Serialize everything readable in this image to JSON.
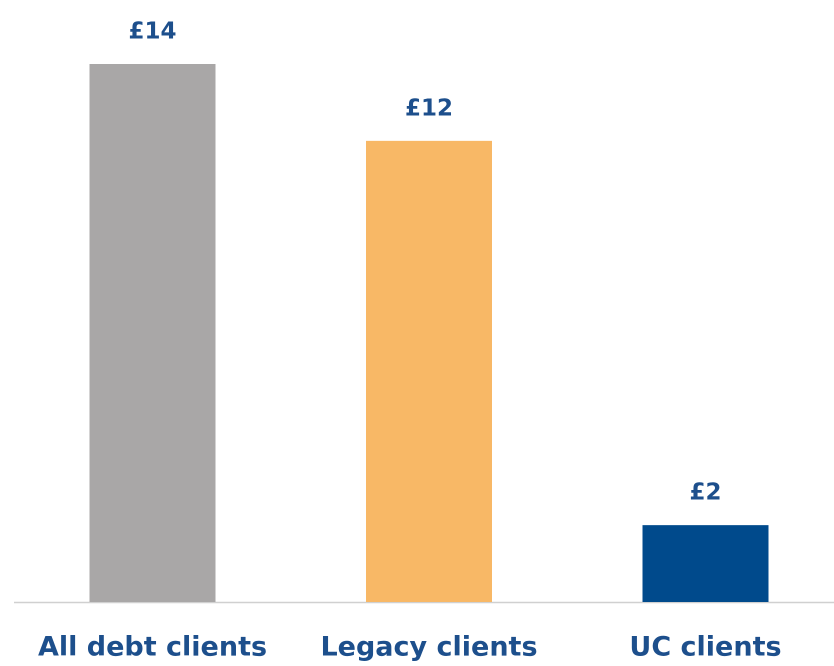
{
  "chart_data": {
    "type": "bar",
    "categories": [
      "All debt clients",
      "Legacy clients",
      "UC clients"
    ],
    "values": [
      14,
      12,
      2
    ],
    "value_labels": [
      "£14",
      "£12",
      "£2"
    ],
    "colors": [
      "#a9a7a7",
      "#f8b866",
      "#004a8c"
    ],
    "ylim": [
      0,
      14
    ]
  }
}
